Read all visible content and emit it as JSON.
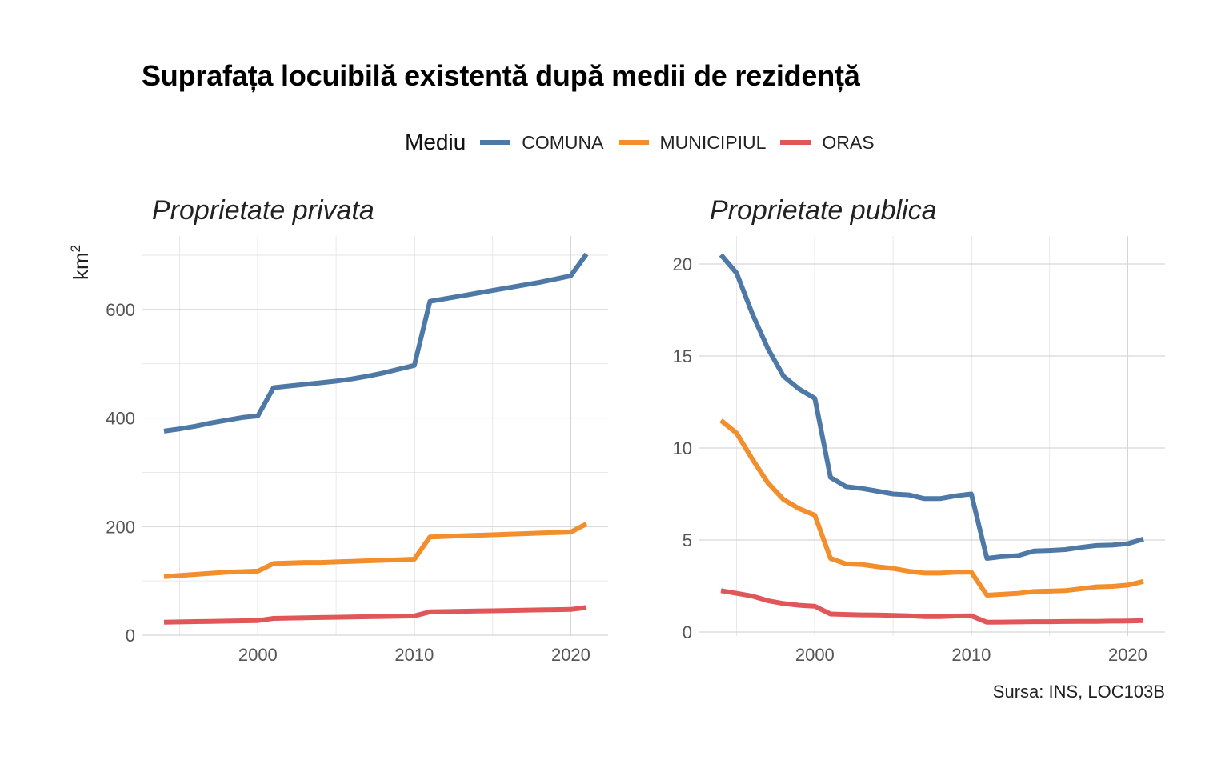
{
  "title": "Suprafața locuibilă existentă după medii de rezidență",
  "legend": {
    "title": "Mediu",
    "items": [
      {
        "label": "COMUNA",
        "color": "#4e79a7"
      },
      {
        "label": "MUNICIPIUL",
        "color": "#f28e2b"
      },
      {
        "label": "ORAS",
        "color": "#e15759"
      }
    ]
  },
  "ylabel": {
    "base": "km",
    "sup": "2"
  },
  "caption": "Sursa: INS, LOC103B",
  "chart_data": [
    {
      "type": "line",
      "title": "Proprietate privata",
      "ylabel": "km2",
      "xlim": [
        1993.5,
        2022.5
      ],
      "ylim": [
        0,
        700
      ],
      "x_ticks": [
        2000,
        2010,
        2020
      ],
      "y_ticks": [
        0,
        200,
        400,
        600
      ],
      "grid": true,
      "x": [
        1994,
        1995,
        1996,
        1997,
        1998,
        1999,
        2000,
        2001,
        2002,
        2003,
        2004,
        2005,
        2006,
        2007,
        2008,
        2009,
        2010,
        2011,
        2012,
        2013,
        2014,
        2015,
        2016,
        2017,
        2018,
        2019,
        2020,
        2021
      ],
      "series": [
        {
          "name": "COMUNA",
          "color": "#4e79a7",
          "values": [
            376,
            380,
            385,
            391,
            396,
            401,
            404,
            456,
            459,
            462,
            465,
            468,
            472,
            477,
            483,
            490,
            497,
            615,
            620,
            625,
            630,
            635,
            640,
            645,
            650,
            656,
            662,
            702
          ]
        },
        {
          "name": "MUNICIPIUL",
          "color": "#f28e2b",
          "values": [
            108,
            110,
            112,
            114,
            116,
            117,
            118,
            132,
            133,
            134,
            134,
            135,
            136,
            137,
            138,
            139,
            140,
            181,
            182,
            183,
            184,
            185,
            186,
            187,
            188,
            189,
            190,
            205
          ]
        },
        {
          "name": "ORAS",
          "color": "#e15759",
          "values": [
            24,
            24.5,
            25,
            25.5,
            26,
            26.5,
            27,
            31,
            31.5,
            32,
            32.5,
            33,
            33.5,
            34,
            34.5,
            35,
            35.5,
            43,
            43.5,
            44,
            44.5,
            45,
            45.5,
            46,
            46.5,
            47,
            47.5,
            51
          ]
        }
      ]
    },
    {
      "type": "line",
      "title": "Proprietate publica",
      "ylabel": "km2",
      "xlim": [
        1993.5,
        2022.5
      ],
      "ylim": [
        0,
        20.5
      ],
      "x_ticks": [
        2000,
        2010,
        2020
      ],
      "y_ticks": [
        0,
        5,
        10,
        15,
        20
      ],
      "grid": true,
      "x": [
        1994,
        1995,
        1996,
        1997,
        1998,
        1999,
        2000,
        2001,
        2002,
        2003,
        2004,
        2005,
        2006,
        2007,
        2008,
        2009,
        2010,
        2011,
        2012,
        2013,
        2014,
        2015,
        2016,
        2017,
        2018,
        2019,
        2020,
        2021
      ],
      "series": [
        {
          "name": "COMUNA",
          "color": "#4e79a7",
          "values": [
            20.5,
            19.5,
            17.3,
            15.4,
            13.9,
            13.2,
            12.7,
            8.4,
            7.9,
            7.8,
            7.65,
            7.5,
            7.45,
            7.25,
            7.25,
            7.4,
            7.5,
            4.0,
            4.1,
            4.15,
            4.4,
            4.43,
            4.48,
            4.6,
            4.7,
            4.72,
            4.8,
            5.05
          ]
        },
        {
          "name": "MUNICIPIUL",
          "color": "#f28e2b",
          "values": [
            11.5,
            10.8,
            9.4,
            8.1,
            7.2,
            6.7,
            6.35,
            4.0,
            3.7,
            3.67,
            3.55,
            3.45,
            3.3,
            3.2,
            3.2,
            3.25,
            3.25,
            2.0,
            2.05,
            2.1,
            2.2,
            2.22,
            2.25,
            2.35,
            2.45,
            2.48,
            2.55,
            2.75
          ]
        },
        {
          "name": "ORAS",
          "color": "#e15759",
          "values": [
            2.25,
            2.1,
            1.95,
            1.7,
            1.55,
            1.45,
            1.4,
            0.98,
            0.95,
            0.93,
            0.92,
            0.9,
            0.88,
            0.84,
            0.84,
            0.87,
            0.88,
            0.53,
            0.54,
            0.55,
            0.56,
            0.56,
            0.57,
            0.58,
            0.58,
            0.59,
            0.6,
            0.62
          ]
        }
      ]
    }
  ]
}
